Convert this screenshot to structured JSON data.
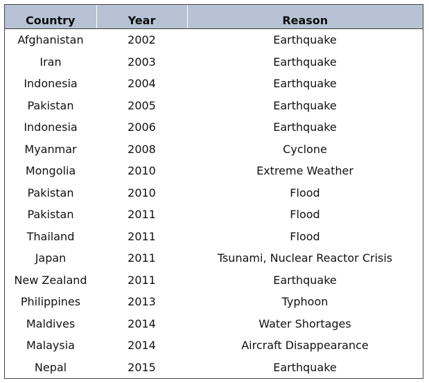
{
  "table": {
    "headers": [
      "Country",
      "Year",
      "Reason"
    ],
    "rows": [
      [
        "Afghanistan",
        "2002",
        "Earthquake"
      ],
      [
        "Iran",
        "2003",
        "Earthquake"
      ],
      [
        "Indonesia",
        "2004",
        "Earthquake"
      ],
      [
        "Pakistan",
        "2005",
        "Earthquake"
      ],
      [
        "Indonesia",
        "2006",
        "Earthquake"
      ],
      [
        "Myanmar",
        "2008",
        "Cyclone"
      ],
      [
        "Mongolia",
        "2010",
        "Extreme Weather"
      ],
      [
        "Pakistan",
        "2010",
        "Flood"
      ],
      [
        "Pakistan",
        "2011",
        "Flood"
      ],
      [
        "Thailand",
        "2011",
        "Flood"
      ],
      [
        "Japan",
        "2011",
        "Tsunami, Nuclear Reactor Crisis"
      ],
      [
        "New Zealand",
        "2011",
        "Earthquake"
      ],
      [
        "Philippines",
        "2013",
        "Typhoon"
      ],
      [
        "Maldives",
        "2014",
        "Water Shortages"
      ],
      [
        "Malaysia",
        "2014",
        "Aircraft Disappearance"
      ],
      [
        "Nepal",
        "2015",
        "Earthquake"
      ]
    ]
  },
  "colors": {
    "header_background": "#b7c3d4",
    "border": "#404040",
    "text": "#111111"
  }
}
